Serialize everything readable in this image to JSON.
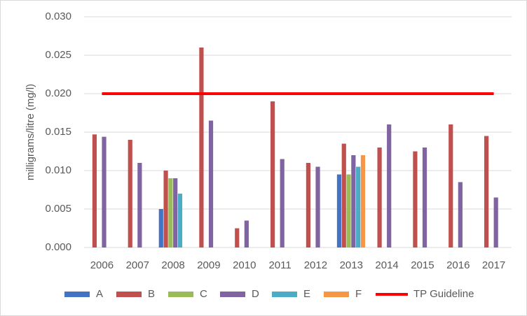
{
  "chart_data": {
    "type": "bar",
    "y_label": "milligrams/litre (mg/l)",
    "categories": [
      "2006",
      "2007",
      "2008",
      "2009",
      "2010",
      "2011",
      "2012",
      "2013",
      "2014",
      "2015",
      "2016",
      "2017"
    ],
    "series": [
      {
        "name": "A",
        "color": "#4472c4",
        "values": [
          null,
          null,
          0.005,
          null,
          null,
          null,
          null,
          0.0095,
          null,
          null,
          null,
          null
        ]
      },
      {
        "name": "B",
        "color": "#c0504d",
        "values": [
          0.0147,
          0.014,
          0.01,
          0.026,
          0.0025,
          0.019,
          0.011,
          0.0135,
          0.013,
          0.0125,
          0.016,
          0.0145
        ]
      },
      {
        "name": "C",
        "color": "#9bbb59",
        "values": [
          null,
          null,
          0.009,
          null,
          null,
          null,
          null,
          0.0095,
          null,
          null,
          null,
          null
        ]
      },
      {
        "name": "D",
        "color": "#8064a2",
        "values": [
          0.0144,
          0.011,
          0.009,
          0.0165,
          0.0035,
          0.0115,
          0.0105,
          0.012,
          0.016,
          0.013,
          0.0085,
          0.0065
        ]
      },
      {
        "name": "E",
        "color": "#4bacc6",
        "values": [
          null,
          null,
          0.007,
          null,
          null,
          null,
          null,
          0.0105,
          null,
          null,
          null,
          null
        ]
      },
      {
        "name": "F",
        "color": "#f79646",
        "values": [
          null,
          null,
          null,
          null,
          null,
          null,
          null,
          0.012,
          null,
          null,
          null,
          null
        ]
      },
      {
        "name": "TP Guideline",
        "type": "line",
        "color": "#ff0000",
        "values": [
          0.02,
          0.02,
          0.02,
          0.02,
          0.02,
          0.02,
          0.02,
          0.02,
          0.02,
          0.02,
          0.02,
          0.02
        ]
      }
    ],
    "ylim": [
      0,
      0.03
    ],
    "yticks": [
      {
        "value": 0,
        "label": "0.000"
      },
      {
        "value": 0.005,
        "label": "0.005"
      },
      {
        "value": 0.01,
        "label": "0.010"
      },
      {
        "value": 0.015,
        "label": "0.015"
      },
      {
        "value": 0.02,
        "label": "0.020"
      },
      {
        "value": 0.025,
        "label": "0.025"
      },
      {
        "value": 0.03,
        "label": "0.030"
      }
    ],
    "grid": true,
    "legend": "bottom"
  }
}
